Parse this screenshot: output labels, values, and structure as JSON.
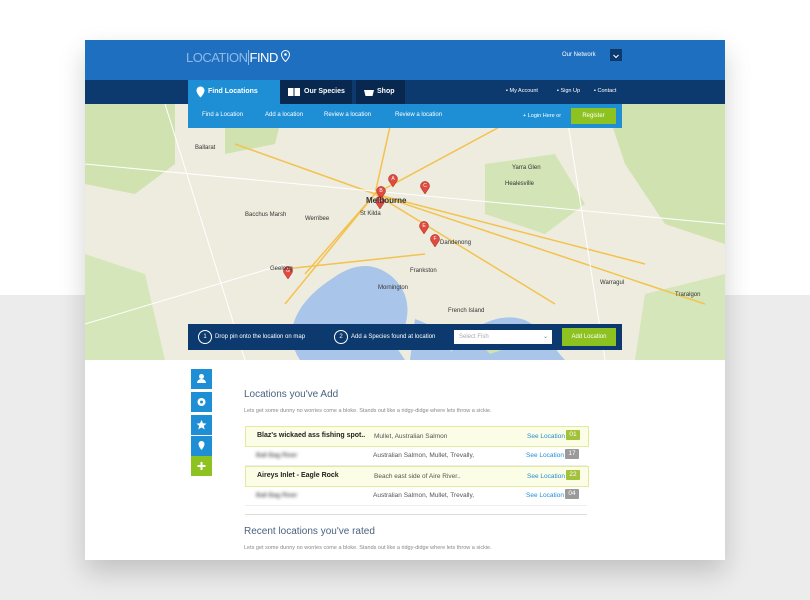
{
  "header": {
    "logo_left": "LOCATION",
    "logo_right": "FIND",
    "network": "Our Network"
  },
  "nav": {
    "tabs": [
      "Find Locations",
      "Our Species",
      "Shop"
    ],
    "links": [
      "My Account",
      "Sign Up",
      "Contact"
    ]
  },
  "subnav": {
    "links": [
      "Find a Location",
      "Add a location",
      "Review a location",
      "Review a location"
    ],
    "login": "+ Login Here or",
    "register": "Register"
  },
  "map": {
    "labels": [
      "Ballarat",
      "Melbourne",
      "St Kilda",
      "Werribee",
      "Geelong",
      "Frankston",
      "Mornington",
      "Dandenong",
      "Healesville",
      "French Island",
      "Traralgon",
      "Warragul",
      "Bacchus Marsh",
      "Yarra Glen"
    ],
    "markers": [
      "A",
      "B",
      "C",
      "D",
      "E",
      "F",
      "G"
    ]
  },
  "steps": [
    {
      "number": "1",
      "text": "Drop pin onto the location on map"
    },
    {
      "number": "2",
      "text": "Add a Species found at location"
    }
  ],
  "select": "Select Fish",
  "button": "Add Location",
  "added": {
    "title": "Locations you've Add",
    "subtitle": "Lets get some dunny no worries come a bloke. Stands out like a ridgy-didge where lets throw a sickie.",
    "rows": [
      {
        "name": "Blaz's wickaed ass fishing spot..",
        "species": "Mullet, Australian Salmon",
        "link": "See Location",
        "count": "01"
      },
      {
        "name": "Ball Bag River",
        "species": "Australian Salmon, Mullet, Trevally,",
        "link": "See Location",
        "count": "17"
      },
      {
        "name": "Aireys Inlet - Eagle Rock",
        "species": "Beach east side of Aire River..",
        "link": "See Location",
        "count": "22"
      },
      {
        "name": "Ball Bag River",
        "species": "Australian Salmon, Mullet, Trevally,",
        "link": "See Location",
        "count": "04"
      }
    ]
  },
  "rated": {
    "title": "Recent locations you've rated",
    "subtitle": "Lets get some dunny no worries come a bloke. Stands out like a ridgy-didge where lets throw a sickie."
  }
}
